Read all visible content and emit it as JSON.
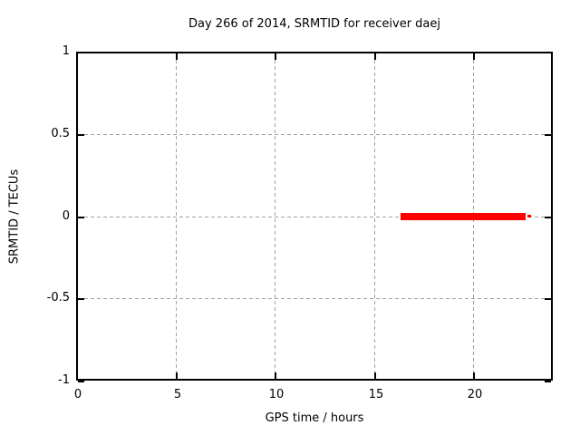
{
  "chart_data": {
    "type": "line",
    "title": "Day 266 of 2014, SRMTID for receiver daej",
    "xlabel": "GPS time / hours",
    "ylabel": "SRMTID / TECUs",
    "xlim": [
      0,
      24
    ],
    "ylim": [
      -1,
      1
    ],
    "grid": true,
    "legend_position": "none",
    "xticks": [
      {
        "v": 0,
        "label": "0"
      },
      {
        "v": 5,
        "label": "5"
      },
      {
        "v": 10,
        "label": "10"
      },
      {
        "v": 15,
        "label": "15"
      },
      {
        "v": 20,
        "label": "20"
      }
    ],
    "yticks": [
      {
        "v": 1,
        "label": "1"
      },
      {
        "v": 0.5,
        "label": "0.5"
      },
      {
        "v": 0,
        "label": "0"
      },
      {
        "v": -0.5,
        "label": "-0.5"
      },
      {
        "v": -1,
        "label": "-1"
      }
    ],
    "series": [
      {
        "name": "SRMTID",
        "color": "#ff0000",
        "description": "flat horizontal line at y = 0 spanning roughly 16.3 to 22.9 hours",
        "segments": [
          {
            "x0": 16.33,
            "x1": 22.62,
            "y": 0,
            "thickness_px": 8
          },
          {
            "x0": 22.72,
            "x1": 22.88,
            "y": 0,
            "thickness_px": 3
          }
        ]
      }
    ]
  },
  "colors": {
    "background": "#ffffff",
    "text": "#000000",
    "border": "#000000",
    "grid": "#a0a0a0",
    "series_red": "#ff0000"
  }
}
